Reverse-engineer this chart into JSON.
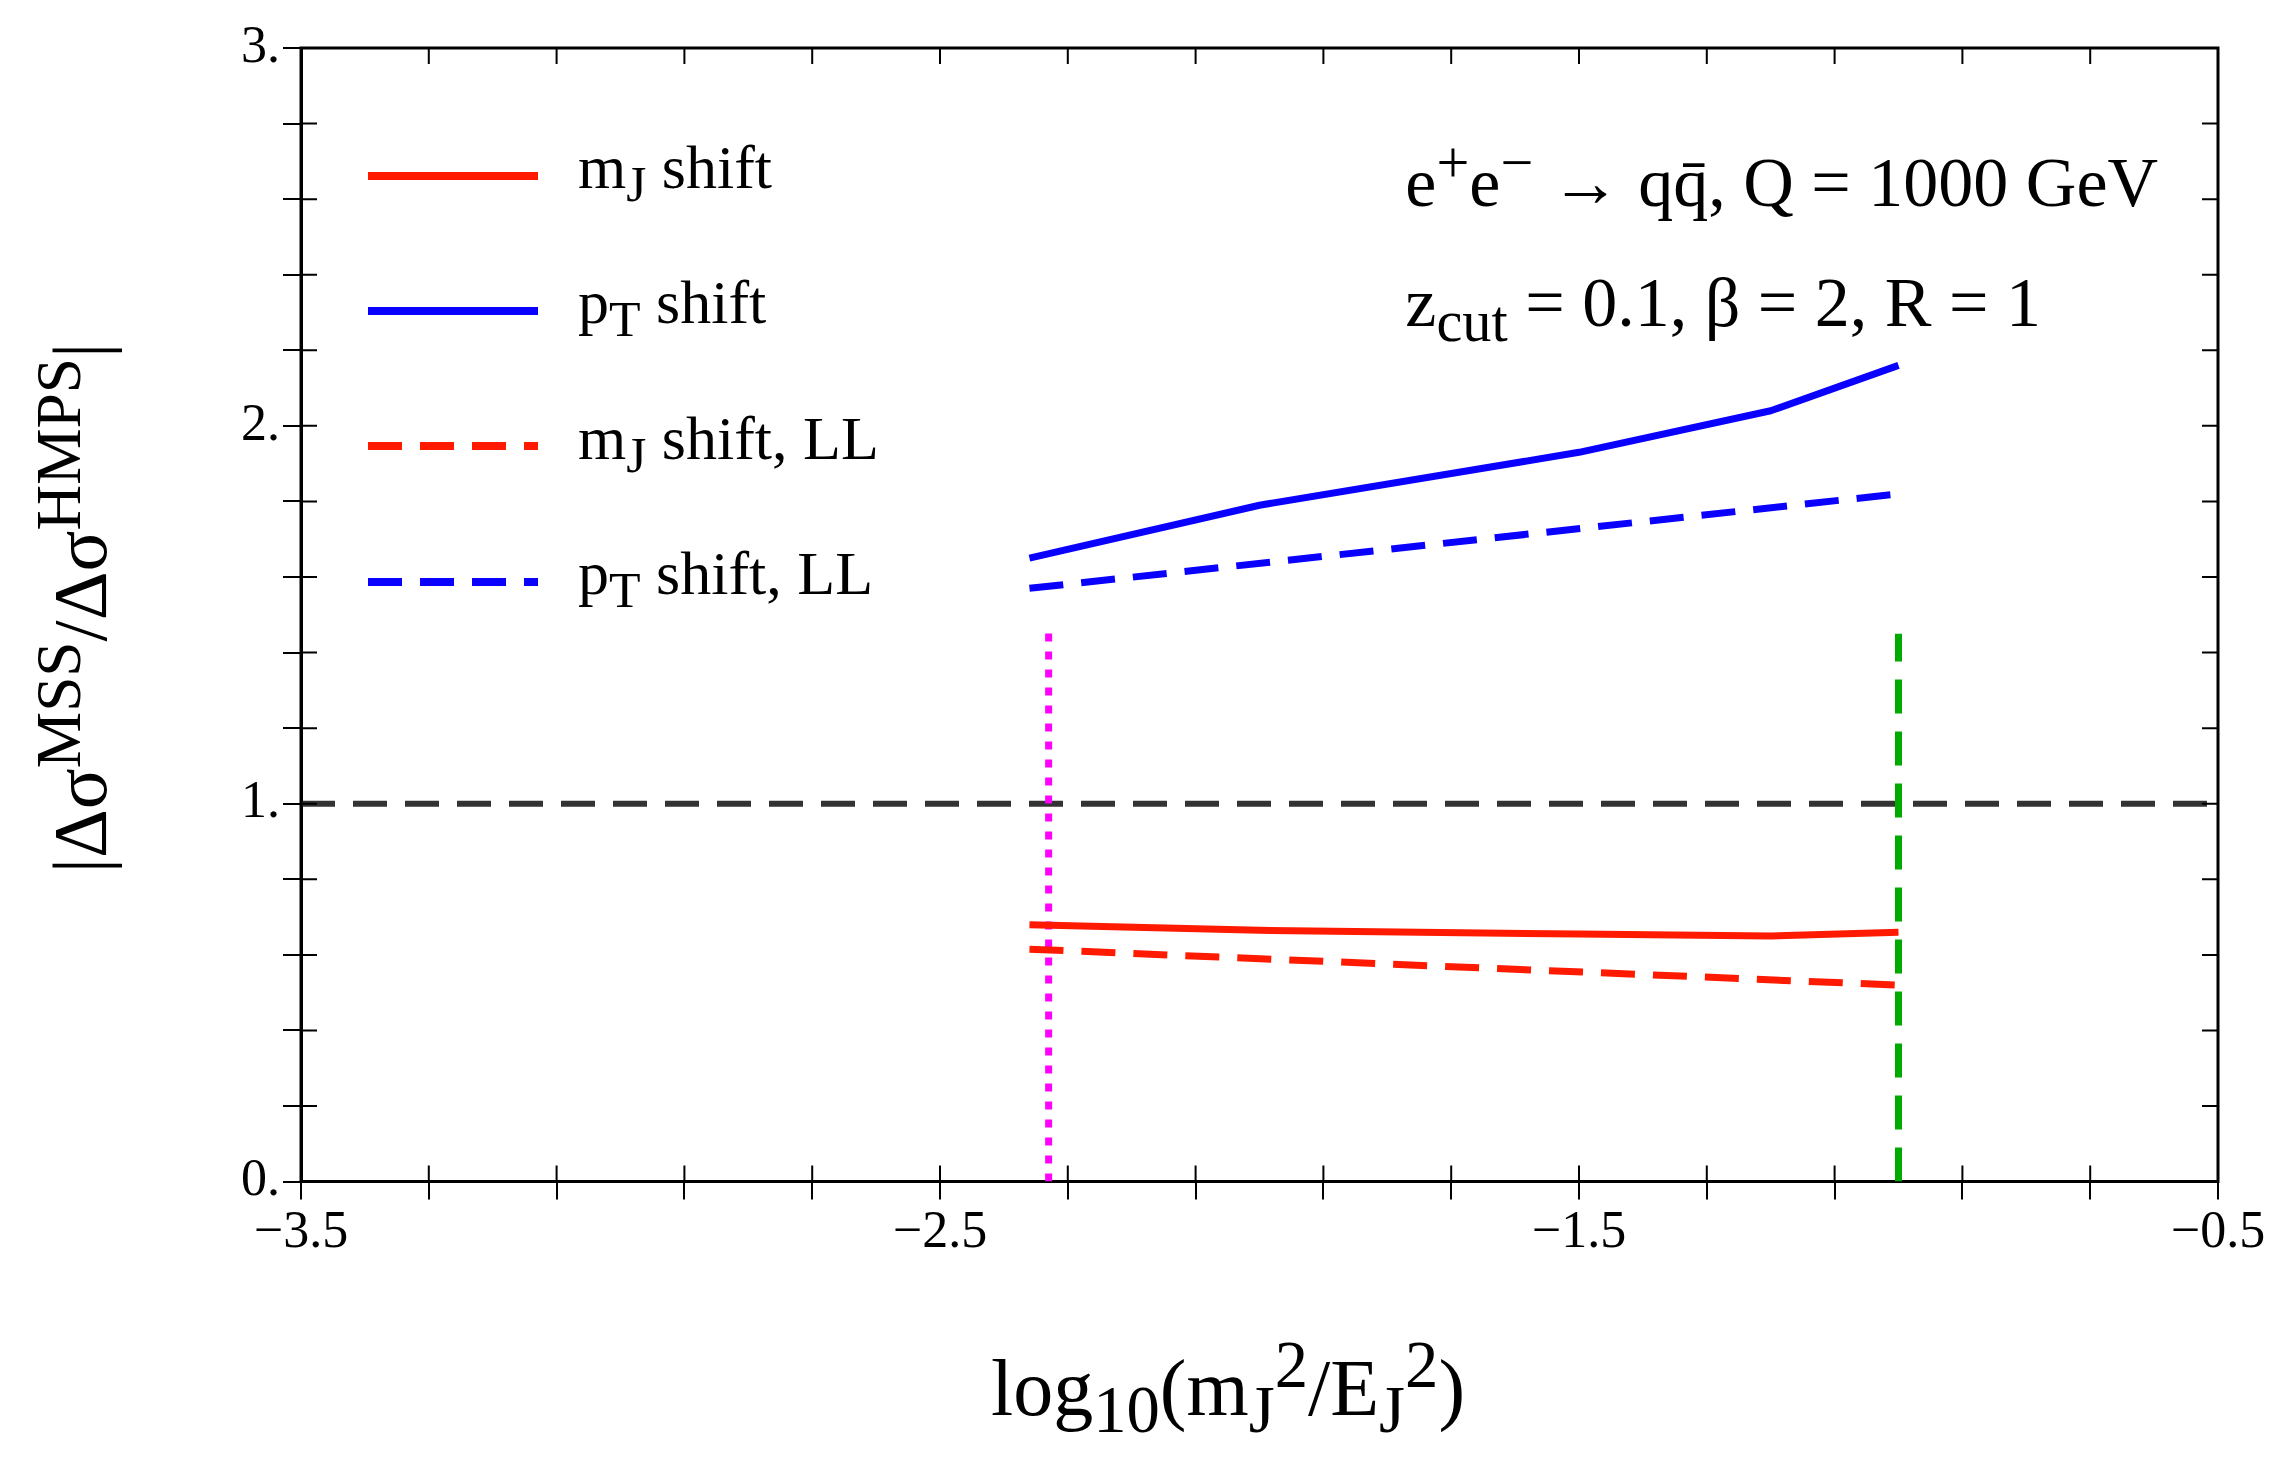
{
  "chart_data": {
    "type": "line",
    "xlabel": "log$_{10}$(m$_{J}$$^{2}$/E$_{J}$$^{2}$)",
    "ylabel": "|Δσ$^{MSS}$/Δσ$^{HMPS}$|",
    "annotations": [
      "e$^{+}$e$^{−}$ → qq̄,  Q = 1000 GeV",
      "z$_{cut}$ = 0.1,  β = 2,  R = 1"
    ],
    "series": [
      {
        "name": "m$_{J}$ shift",
        "color": "#ff1a00",
        "line_style": "solid",
        "x": [
          -2.36,
          -2.0,
          -1.5,
          -1.2,
          -1.0
        ],
        "values": [
          0.68,
          0.665,
          0.655,
          0.65,
          0.66
        ]
      },
      {
        "name": "p$_{T}$ shift",
        "color": "#0a00ff",
        "line_style": "solid",
        "x": [
          -2.36,
          -2.0,
          -1.5,
          -1.2,
          -1.0
        ],
        "values": [
          1.65,
          1.79,
          1.93,
          2.04,
          2.16
        ]
      },
      {
        "name": "m$_{J}$ shift, LL",
        "color": "#ff1a00",
        "line_style": "dashed",
        "x": [
          -2.36,
          -1.0
        ],
        "values": [
          0.615,
          0.52
        ]
      },
      {
        "name": "p$_{T}$ shift, LL",
        "color": "#0a00ff",
        "line_style": "dashed",
        "x": [
          -2.36,
          -1.0
        ],
        "values": [
          1.57,
          1.82
        ]
      },
      {
        "color": "#ff00ff",
        "line_style": "dotted",
        "x": [
          -2.33,
          -2.33
        ],
        "values": [
          0,
          1.46
        ]
      },
      {
        "color": "#00aa00",
        "line_style": "dashed",
        "x": [
          -1.0,
          -1.0
        ],
        "values": [
          0,
          1.45
        ]
      }
    ],
    "ref_lines": [
      {
        "axis": "y",
        "value": 1,
        "color": "#333333",
        "line_style": "dashed"
      }
    ],
    "xlim": [
      -3.5,
      -0.5
    ],
    "xticks": [
      -3.5,
      {
        "value": -3.3,
        "label": null
      },
      {
        "value": -3.1,
        "label": null
      },
      {
        "value": -2.9,
        "label": null
      },
      {
        "value": -2.7,
        "label": null
      },
      -2.5,
      {
        "value": -2.3,
        "label": null
      },
      {
        "value": -2.1,
        "label": null
      },
      {
        "value": -1.9,
        "label": null
      },
      {
        "value": -1.7,
        "label": null
      },
      -1.5,
      {
        "value": -1.3,
        "label": null
      },
      {
        "value": -1.1,
        "label": null
      },
      {
        "value": -0.9,
        "label": null
      },
      {
        "value": -0.7,
        "label": null
      },
      -0.5
    ],
    "ylim": [
      0,
      3
    ],
    "yticks": [
      {
        "value": 0,
        "label": "0."
      },
      {
        "value": 0.2,
        "label": null
      },
      {
        "value": 0.4,
        "label": null
      },
      {
        "value": 0.6,
        "label": null
      },
      {
        "value": 0.8,
        "label": null
      },
      {
        "value": 1,
        "label": "1."
      },
      {
        "value": 1.2,
        "label": null
      },
      {
        "value": 1.4,
        "label": null
      },
      {
        "value": 1.6,
        "label": null
      },
      {
        "value": 1.8,
        "label": null
      },
      {
        "value": 2,
        "label": "2."
      },
      {
        "value": 2.2,
        "label": null
      },
      {
        "value": 2.4,
        "label": null
      },
      {
        "value": 2.6,
        "label": null
      },
      {
        "value": 2.8,
        "label": null
      },
      {
        "value": 3,
        "label": "3."
      }
    ],
    "grid": false,
    "legend": "top left",
    "marker": "none"
  }
}
